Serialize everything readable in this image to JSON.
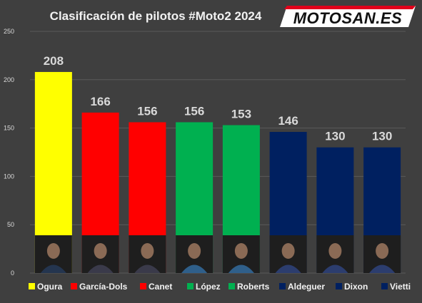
{
  "logo": {
    "text": "MOTOSAN.ES",
    "accent_color": "#e0001b"
  },
  "chart_data": {
    "type": "bar",
    "title": "Clasificación de pilotos #Moto2 2024",
    "categories": [
      "Ogura",
      "García-Dols",
      "Canet",
      "López",
      "Roberts",
      "Aldeguer",
      "Dixon",
      "Vietti"
    ],
    "values": [
      208,
      166,
      156,
      156,
      153,
      146,
      130,
      130
    ],
    "colors": [
      "#ffff00",
      "#ff0000",
      "#ff0000",
      "#00b050",
      "#00b050",
      "#002060",
      "#002060",
      "#002060"
    ],
    "ylim": [
      0,
      250
    ],
    "yticks": [
      0,
      50,
      100,
      150,
      200,
      250
    ],
    "grid": true,
    "legend_position": "bottom",
    "bar_base_images": "rider portrait photos"
  }
}
